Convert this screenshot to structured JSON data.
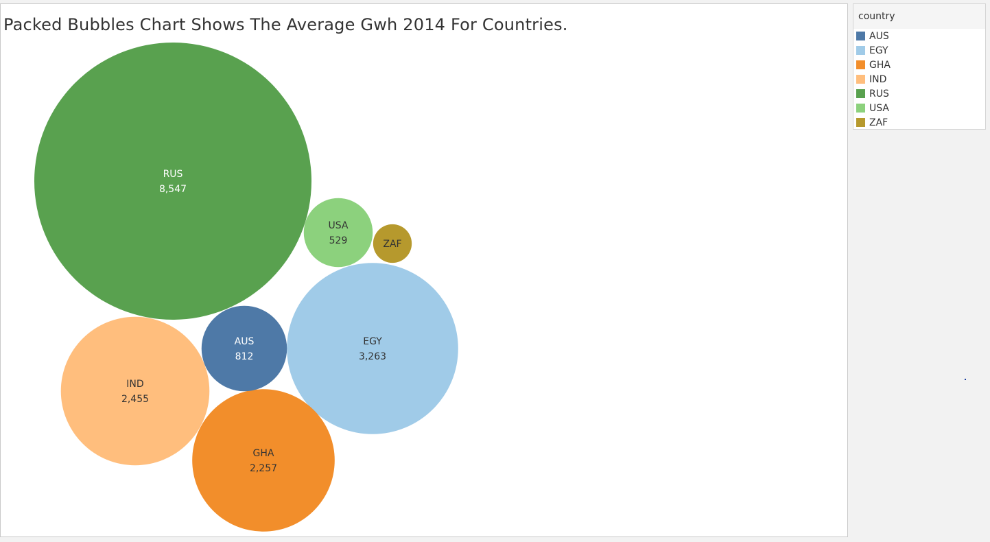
{
  "chart_data": {
    "type": "packed-bubbles",
    "title": "Packed Bubbles Chart Shows The Average Gwh 2014 For Countries.",
    "legend_title": "country",
    "legend_placement": "right",
    "bubbles": [
      {
        "label": "RUS",
        "value": 8547,
        "value_label": "8,547",
        "color": "#59a14f",
        "text_color": "#ffffff"
      },
      {
        "label": "EGY",
        "value": 3263,
        "value_label": "3,263",
        "color": "#a0cbe8",
        "text_color": "#333333"
      },
      {
        "label": "IND",
        "value": 2455,
        "value_label": "2,455",
        "color": "#ffbe7d",
        "text_color": "#333333"
      },
      {
        "label": "GHA",
        "value": 2257,
        "value_label": "2,257",
        "color": "#f28e2b",
        "text_color": "#333333"
      },
      {
        "label": "AUS",
        "value": 812,
        "value_label": "812",
        "color": "#4e79a7",
        "text_color": "#ffffff"
      },
      {
        "label": "USA",
        "value": 529,
        "value_label": "529",
        "color": "#8cd17d",
        "text_color": "#333333"
      },
      {
        "label": "ZAF",
        "value": 166,
        "value_label": "",
        "color": "#b6992d",
        "text_color": "#333333"
      }
    ],
    "legend": [
      {
        "label": "AUS",
        "color": "#4e79a7"
      },
      {
        "label": "EGY",
        "color": "#a0cbe8"
      },
      {
        "label": "GHA",
        "color": "#f28e2b"
      },
      {
        "label": "IND",
        "color": "#ffbe7d"
      },
      {
        "label": "RUS",
        "color": "#59a14f"
      },
      {
        "label": "USA",
        "color": "#8cd17d"
      },
      {
        "label": "ZAF",
        "color": "#b6992d"
      }
    ]
  }
}
